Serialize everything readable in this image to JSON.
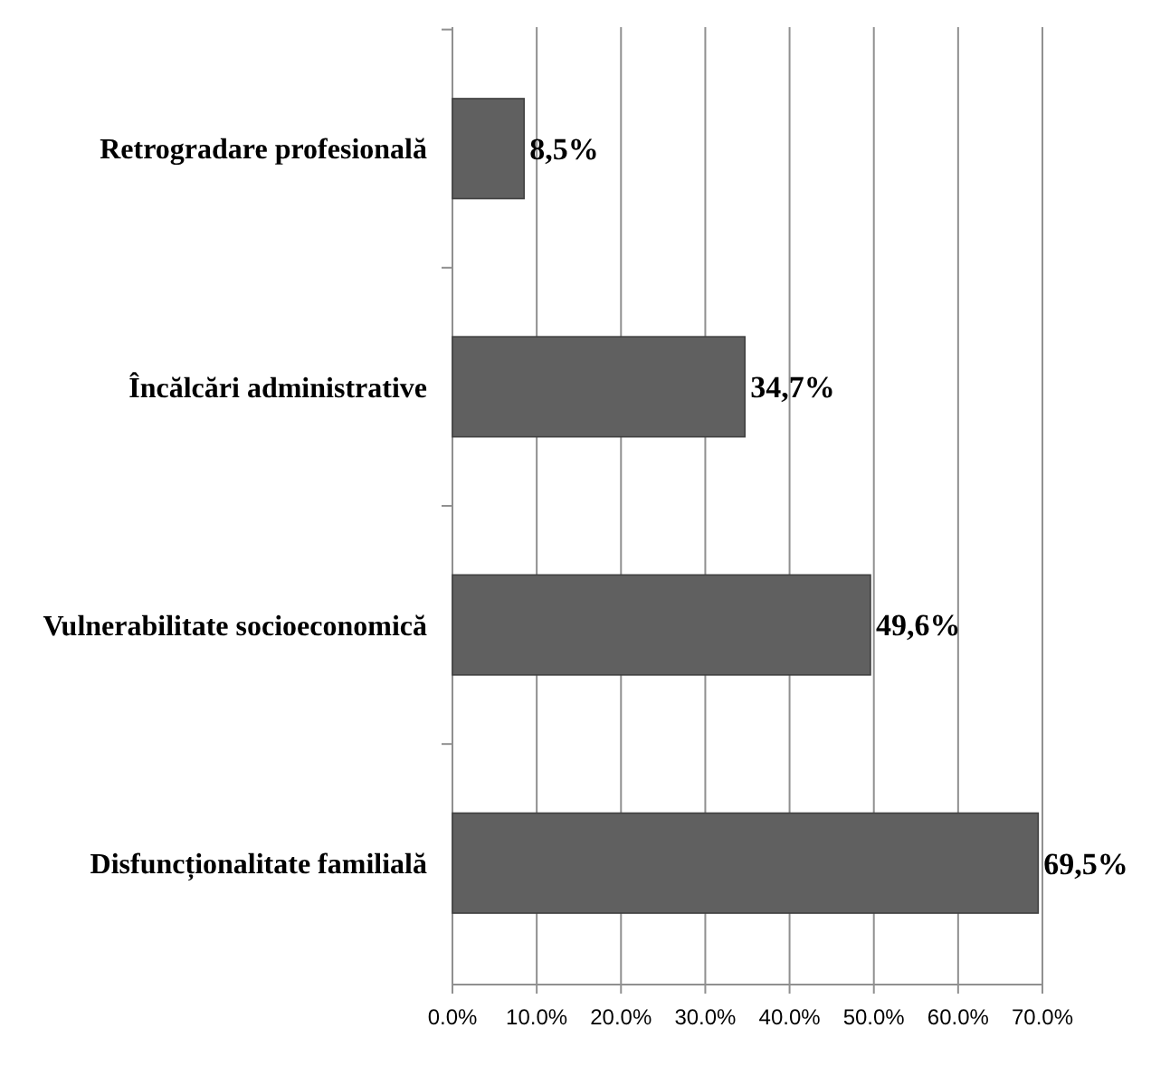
{
  "chart_data": {
    "type": "bar",
    "orientation": "horizontal",
    "categories": [
      "Retrogradare profesională",
      "Încălcări administrative",
      "Vulnerabilitate socioeconomică",
      "Disfuncționalitate familială"
    ],
    "values": [
      8.5,
      34.7,
      49.6,
      69.5
    ],
    "value_labels": [
      "8,5%",
      "34,7%",
      "49,6%",
      "69,5%"
    ],
    "color": "#606060",
    "xlim": [
      0,
      70
    ],
    "xticks": [
      {
        "value": 0,
        "label": "0.0%"
      },
      {
        "value": 10,
        "label": "10.0%"
      },
      {
        "value": 20,
        "label": "20.0%"
      },
      {
        "value": 30,
        "label": "30.0%"
      },
      {
        "value": 40,
        "label": "40.0%"
      },
      {
        "value": 50,
        "label": "50.0%"
      },
      {
        "value": 60,
        "label": "60.0%"
      },
      {
        "value": 70,
        "label": "70.0%"
      }
    ],
    "grid": "x"
  }
}
